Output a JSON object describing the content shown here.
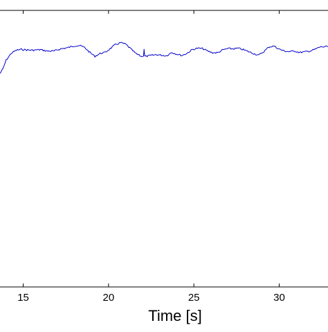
{
  "chart_data": {
    "type": "line",
    "title": "",
    "xlabel": "Time [s]",
    "ylabel": "",
    "xlim": [
      13.64,
      32.86
    ],
    "ylim": [
      0,
      1
    ],
    "grid": false,
    "x_ticks": [
      15,
      20,
      25,
      30
    ],
    "x_tick_labels": [
      "15",
      "20",
      "25",
      "30"
    ],
    "series_color": "#0000cc",
    "series": [
      {
        "x": [
          13.64,
          13.8,
          14.0,
          14.3,
          14.6,
          14.9,
          15.2,
          15.6,
          16.0,
          16.4,
          16.8,
          17.2,
          17.6,
          18.0,
          18.3,
          18.6,
          18.9,
          19.2,
          19.5,
          19.8,
          20.1,
          20.4,
          20.7,
          21.0,
          21.3,
          21.6,
          21.9,
          22.05,
          22.08,
          22.12,
          22.2,
          22.5,
          22.8,
          23.1,
          23.4,
          23.7,
          24.0,
          24.3,
          24.6,
          24.9,
          25.2,
          25.5,
          25.8,
          26.1,
          26.4,
          26.7,
          27.0,
          27.3,
          27.6,
          27.9,
          28.2,
          28.5,
          28.8,
          29.1,
          29.4,
          29.7,
          30.0,
          30.3,
          30.6,
          30.9,
          31.2,
          31.5,
          31.8,
          32.1,
          32.4,
          32.7,
          32.86
        ],
        "y": [
          0.772,
          0.787,
          0.82,
          0.845,
          0.856,
          0.859,
          0.857,
          0.856,
          0.858,
          0.853,
          0.853,
          0.861,
          0.865,
          0.872,
          0.873,
          0.866,
          0.848,
          0.834,
          0.844,
          0.848,
          0.862,
          0.876,
          0.883,
          0.878,
          0.861,
          0.844,
          0.834,
          0.834,
          0.861,
          0.834,
          0.834,
          0.837,
          0.84,
          0.838,
          0.836,
          0.848,
          0.842,
          0.837,
          0.845,
          0.858,
          0.863,
          0.862,
          0.853,
          0.847,
          0.847,
          0.857,
          0.862,
          0.861,
          0.863,
          0.858,
          0.851,
          0.844,
          0.838,
          0.851,
          0.868,
          0.871,
          0.86,
          0.853,
          0.851,
          0.853,
          0.848,
          0.85,
          0.853,
          0.859,
          0.868,
          0.868,
          0.87
        ]
      }
    ]
  }
}
